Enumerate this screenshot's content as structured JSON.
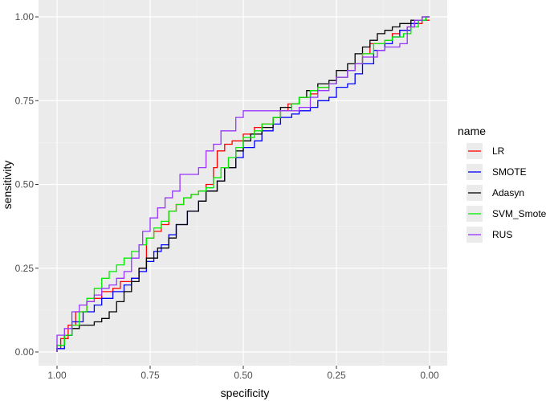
{
  "chart_data": {
    "type": "line",
    "xlabel": "specificity",
    "ylabel": "sensitivity",
    "x_reversed": true,
    "xlim": [
      1.0,
      0.0
    ],
    "ylim": [
      0.0,
      1.0
    ],
    "x_ticks": [
      "1.00",
      "0.75",
      "0.50",
      "0.25",
      "0.00"
    ],
    "y_ticks": [
      "0.00",
      "0.25",
      "0.50",
      "0.75",
      "1.00"
    ],
    "grid": true,
    "legend_title": "name",
    "legend_position": "right",
    "series": [
      {
        "name": "LR",
        "color": "#ff0000",
        "points": [
          [
            1.0,
            0.0
          ],
          [
            0.99,
            0.01
          ],
          [
            0.97,
            0.04
          ],
          [
            0.95,
            0.08
          ],
          [
            0.92,
            0.12
          ],
          [
            0.9,
            0.15
          ],
          [
            0.88,
            0.16
          ],
          [
            0.85,
            0.18
          ],
          [
            0.83,
            0.19
          ],
          [
            0.8,
            0.21
          ],
          [
            0.78,
            0.22
          ],
          [
            0.76,
            0.25
          ],
          [
            0.74,
            0.34
          ],
          [
            0.72,
            0.36
          ],
          [
            0.7,
            0.38
          ],
          [
            0.68,
            0.42
          ],
          [
            0.66,
            0.44
          ],
          [
            0.64,
            0.46
          ],
          [
            0.62,
            0.47
          ],
          [
            0.6,
            0.48
          ],
          [
            0.58,
            0.5
          ],
          [
            0.57,
            0.55
          ],
          [
            0.55,
            0.6
          ],
          [
            0.53,
            0.62
          ],
          [
            0.5,
            0.63
          ],
          [
            0.47,
            0.65
          ],
          [
            0.45,
            0.67
          ],
          [
            0.42,
            0.68
          ],
          [
            0.4,
            0.7
          ],
          [
            0.38,
            0.72
          ],
          [
            0.35,
            0.74
          ],
          [
            0.32,
            0.76
          ],
          [
            0.3,
            0.77
          ],
          [
            0.27,
            0.79
          ],
          [
            0.25,
            0.8
          ],
          [
            0.22,
            0.82
          ],
          [
            0.2,
            0.84
          ],
          [
            0.18,
            0.86
          ],
          [
            0.16,
            0.89
          ],
          [
            0.14,
            0.92
          ],
          [
            0.12,
            0.92
          ],
          [
            0.1,
            0.93
          ],
          [
            0.08,
            0.95
          ],
          [
            0.06,
            0.96
          ],
          [
            0.04,
            0.97
          ],
          [
            0.02,
            0.98
          ],
          [
            0.01,
            0.99
          ],
          [
            0.0,
            0.99
          ]
        ]
      },
      {
        "name": "SMOTE",
        "color": "#0000ff",
        "points": [
          [
            1.0,
            0.0
          ],
          [
            0.98,
            0.01
          ],
          [
            0.96,
            0.05
          ],
          [
            0.93,
            0.09
          ],
          [
            0.9,
            0.12
          ],
          [
            0.88,
            0.14
          ],
          [
            0.85,
            0.16
          ],
          [
            0.82,
            0.18
          ],
          [
            0.8,
            0.2
          ],
          [
            0.78,
            0.22
          ],
          [
            0.76,
            0.24
          ],
          [
            0.74,
            0.27
          ],
          [
            0.72,
            0.3
          ],
          [
            0.7,
            0.32
          ],
          [
            0.68,
            0.35
          ],
          [
            0.65,
            0.38
          ],
          [
            0.62,
            0.42
          ],
          [
            0.6,
            0.45
          ],
          [
            0.57,
            0.48
          ],
          [
            0.55,
            0.51
          ],
          [
            0.52,
            0.55
          ],
          [
            0.5,
            0.58
          ],
          [
            0.47,
            0.61
          ],
          [
            0.45,
            0.63
          ],
          [
            0.42,
            0.66
          ],
          [
            0.4,
            0.68
          ],
          [
            0.37,
            0.7
          ],
          [
            0.35,
            0.71
          ],
          [
            0.32,
            0.72
          ],
          [
            0.3,
            0.73
          ],
          [
            0.27,
            0.75
          ],
          [
            0.25,
            0.76
          ],
          [
            0.22,
            0.79
          ],
          [
            0.2,
            0.8
          ],
          [
            0.18,
            0.83
          ],
          [
            0.15,
            0.86
          ],
          [
            0.12,
            0.9
          ],
          [
            0.1,
            0.92
          ],
          [
            0.08,
            0.94
          ],
          [
            0.05,
            0.96
          ],
          [
            0.03,
            0.98
          ],
          [
            0.01,
            0.99
          ],
          [
            0.0,
            1.0
          ]
        ]
      },
      {
        "name": "Adasyn",
        "color": "#000000",
        "points": [
          [
            1.0,
            0.0
          ],
          [
            0.98,
            0.02
          ],
          [
            0.96,
            0.05
          ],
          [
            0.94,
            0.07
          ],
          [
            0.92,
            0.08
          ],
          [
            0.9,
            0.08
          ],
          [
            0.88,
            0.09
          ],
          [
            0.86,
            0.1
          ],
          [
            0.84,
            0.12
          ],
          [
            0.82,
            0.15
          ],
          [
            0.8,
            0.18
          ],
          [
            0.78,
            0.21
          ],
          [
            0.76,
            0.25
          ],
          [
            0.73,
            0.28
          ],
          [
            0.7,
            0.31
          ],
          [
            0.68,
            0.34
          ],
          [
            0.65,
            0.38
          ],
          [
            0.62,
            0.42
          ],
          [
            0.6,
            0.45
          ],
          [
            0.57,
            0.48
          ],
          [
            0.55,
            0.51
          ],
          [
            0.52,
            0.55
          ],
          [
            0.5,
            0.6
          ],
          [
            0.48,
            0.63
          ],
          [
            0.45,
            0.65
          ],
          [
            0.42,
            0.67
          ],
          [
            0.4,
            0.7
          ],
          [
            0.37,
            0.73
          ],
          [
            0.35,
            0.74
          ],
          [
            0.33,
            0.76
          ],
          [
            0.3,
            0.78
          ],
          [
            0.27,
            0.8
          ],
          [
            0.25,
            0.81
          ],
          [
            0.22,
            0.84
          ],
          [
            0.2,
            0.86
          ],
          [
            0.18,
            0.89
          ],
          [
            0.16,
            0.91
          ],
          [
            0.14,
            0.93
          ],
          [
            0.12,
            0.95
          ],
          [
            0.1,
            0.96
          ],
          [
            0.08,
            0.97
          ],
          [
            0.05,
            0.98
          ],
          [
            0.02,
            0.99
          ],
          [
            0.0,
            1.0
          ]
        ]
      },
      {
        "name": "SVM_Smote",
        "color": "#00ee00",
        "points": [
          [
            1.0,
            0.0
          ],
          [
            0.98,
            0.02
          ],
          [
            0.96,
            0.05
          ],
          [
            0.94,
            0.08
          ],
          [
            0.92,
            0.12
          ],
          [
            0.9,
            0.16
          ],
          [
            0.88,
            0.19
          ],
          [
            0.86,
            0.22
          ],
          [
            0.84,
            0.24
          ],
          [
            0.82,
            0.26
          ],
          [
            0.8,
            0.28
          ],
          [
            0.78,
            0.3
          ],
          [
            0.76,
            0.32
          ],
          [
            0.74,
            0.34
          ],
          [
            0.72,
            0.37
          ],
          [
            0.7,
            0.39
          ],
          [
            0.68,
            0.42
          ],
          [
            0.66,
            0.44
          ],
          [
            0.64,
            0.46
          ],
          [
            0.62,
            0.47
          ],
          [
            0.6,
            0.48
          ],
          [
            0.58,
            0.49
          ],
          [
            0.56,
            0.52
          ],
          [
            0.54,
            0.55
          ],
          [
            0.52,
            0.58
          ],
          [
            0.5,
            0.61
          ],
          [
            0.47,
            0.64
          ],
          [
            0.45,
            0.66
          ],
          [
            0.42,
            0.68
          ],
          [
            0.4,
            0.7
          ],
          [
            0.37,
            0.72
          ],
          [
            0.35,
            0.74
          ],
          [
            0.32,
            0.76
          ],
          [
            0.3,
            0.78
          ],
          [
            0.27,
            0.79
          ],
          [
            0.25,
            0.8
          ],
          [
            0.22,
            0.82
          ],
          [
            0.2,
            0.84
          ],
          [
            0.18,
            0.86
          ],
          [
            0.15,
            0.89
          ],
          [
            0.12,
            0.92
          ],
          [
            0.1,
            0.93
          ],
          [
            0.07,
            0.94
          ],
          [
            0.05,
            0.95
          ],
          [
            0.03,
            0.97
          ],
          [
            0.01,
            0.99
          ],
          [
            0.0,
            1.0
          ]
        ]
      },
      {
        "name": "RUS",
        "color": "#9933ff",
        "points": [
          [
            1.0,
            0.0
          ],
          [
            1.0,
            0.05
          ],
          [
            0.98,
            0.05
          ],
          [
            0.96,
            0.07
          ],
          [
            0.94,
            0.12
          ],
          [
            0.92,
            0.14
          ],
          [
            0.9,
            0.15
          ],
          [
            0.88,
            0.17
          ],
          [
            0.86,
            0.19
          ],
          [
            0.84,
            0.2
          ],
          [
            0.82,
            0.22
          ],
          [
            0.8,
            0.24
          ],
          [
            0.78,
            0.28
          ],
          [
            0.77,
            0.32
          ],
          [
            0.75,
            0.36
          ],
          [
            0.73,
            0.4
          ],
          [
            0.71,
            0.43
          ],
          [
            0.69,
            0.46
          ],
          [
            0.67,
            0.48
          ],
          [
            0.66,
            0.53
          ],
          [
            0.64,
            0.53
          ],
          [
            0.62,
            0.53
          ],
          [
            0.6,
            0.55
          ],
          [
            0.58,
            0.6
          ],
          [
            0.56,
            0.62
          ],
          [
            0.54,
            0.66
          ],
          [
            0.52,
            0.66
          ],
          [
            0.5,
            0.7
          ],
          [
            0.45,
            0.72
          ],
          [
            0.42,
            0.72
          ],
          [
            0.38,
            0.72
          ],
          [
            0.35,
            0.72
          ],
          [
            0.32,
            0.73
          ],
          [
            0.3,
            0.76
          ],
          [
            0.27,
            0.78
          ],
          [
            0.25,
            0.8
          ],
          [
            0.22,
            0.82
          ],
          [
            0.2,
            0.84
          ],
          [
            0.18,
            0.86
          ],
          [
            0.16,
            0.88
          ],
          [
            0.14,
            0.88
          ],
          [
            0.12,
            0.9
          ],
          [
            0.1,
            0.91
          ],
          [
            0.08,
            0.91
          ],
          [
            0.06,
            0.92
          ],
          [
            0.04,
            0.97
          ],
          [
            0.02,
            0.99
          ],
          [
            0.0,
            1.0
          ]
        ]
      }
    ]
  }
}
